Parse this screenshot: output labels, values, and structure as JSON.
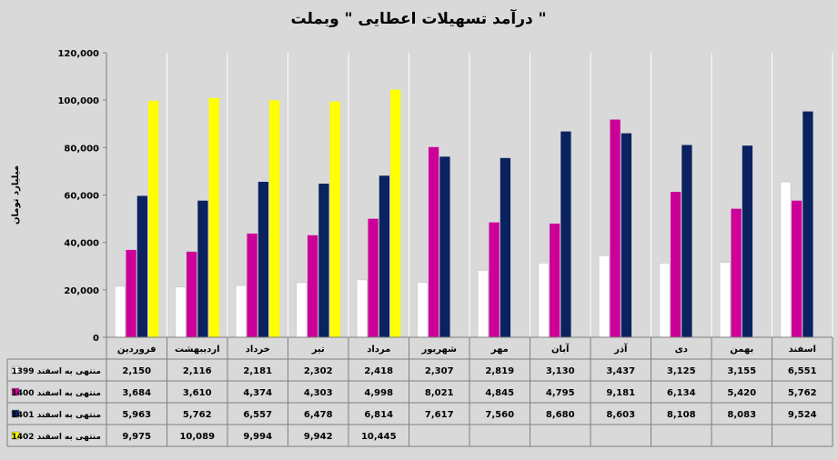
{
  "chart_data": {
    "type": "bar",
    "title": "درآمد تسهیلات اعطایی \" وبملت \"",
    "ylabel": "میلیارد تومان",
    "xlabel": "",
    "ylim": [
      0,
      120000
    ],
    "yticks": [
      0,
      20000,
      40000,
      60000,
      80000,
      100000,
      120000
    ],
    "ytick_labels": [
      "0",
      "20,000",
      "40,000",
      "60,000",
      "80,000",
      "100,000",
      "120,000"
    ],
    "grid": true,
    "legend": "table-left",
    "categories": [
      "فروردین",
      "اردیبهشت",
      "خرداد",
      "تیر",
      "مرداد",
      "شهریور",
      "مهر",
      "آبان",
      "آذر",
      "دی",
      "بهمن",
      "اسفند"
    ],
    "series": [
      {
        "name": "منتهی به اسفند 1399",
        "color": "#ffffff",
        "values": [
          21500,
          21160,
          21810,
          23020,
          24180,
          23070,
          28190,
          31300,
          34370,
          31250,
          31550,
          65510
        ],
        "labels": [
          "2,150",
          "2,116",
          "2,181",
          "2,302",
          "2,418",
          "2,307",
          "2,819",
          "3,130",
          "3,437",
          "3,125",
          "3,155",
          "6,551"
        ]
      },
      {
        "name": "منتهی به اسفند 1400",
        "color": "#cc0099",
        "values": [
          36840,
          36100,
          43740,
          43030,
          49980,
          80210,
          48450,
          47950,
          91810,
          61340,
          54200,
          57620
        ],
        "labels": [
          "3,684",
          "3,610",
          "4,374",
          "4,303",
          "4,998",
          "8,021",
          "4,845",
          "4,795",
          "9,181",
          "6,134",
          "5,420",
          "5,762"
        ]
      },
      {
        "name": "منتهی به اسفند 1401",
        "color": "#0a2260",
        "values": [
          59630,
          57620,
          65570,
          64780,
          68140,
          76170,
          75600,
          86800,
          86030,
          81080,
          80830,
          95240
        ],
        "labels": [
          "5,963",
          "5,762",
          "6,557",
          "6,478",
          "6,814",
          "7,617",
          "7,560",
          "8,680",
          "8,603",
          "8,108",
          "8,083",
          "9,524"
        ]
      },
      {
        "name": "منتهی به اسفند 1402",
        "color": "#ffff00",
        "values": [
          99750,
          100890,
          99940,
          99420,
          104450,
          null,
          null,
          null,
          null,
          null,
          null,
          null
        ],
        "labels": [
          "9,975",
          "10,089",
          "9,994",
          "9,942",
          "10,445",
          "",
          "",
          "",
          "",
          "",
          "",
          ""
        ]
      }
    ]
  }
}
